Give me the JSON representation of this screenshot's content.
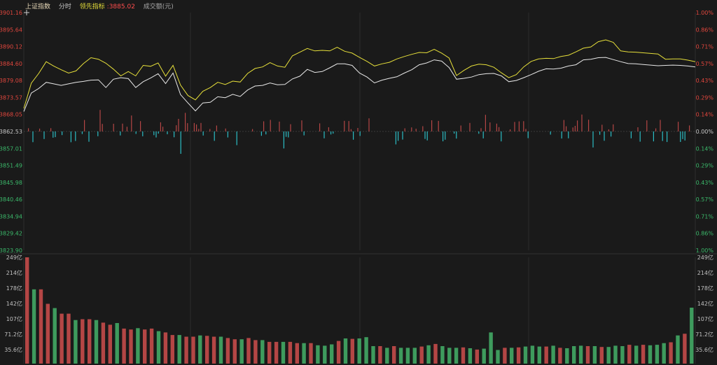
{
  "header": {
    "index_name": "上证指数",
    "mode": "分时",
    "lead_label": "领先指标",
    "lead_value": ":3885.02",
    "volume_label": "成交额(元)"
  },
  "colors": {
    "up": "#e0463d",
    "down": "#3bb86a",
    "teal": "#2bbcc4",
    "price_line": "#e8e8e8",
    "lead_line": "#e6df3a",
    "bar_red": "#b44645",
    "bar_green": "#3e9b5d"
  },
  "chart_data": [
    {
      "type": "line",
      "title": "",
      "y_left_ticks": [
        "3901.16",
        "3895.64",
        "3890.12",
        "3884.60",
        "3879.08",
        "3873.57",
        "3868.05",
        "3862.53",
        "3857.01",
        "3851.49",
        "3845.98",
        "3840.46",
        "3834.94",
        "3829.42",
        "3823.90"
      ],
      "y_right_ticks": [
        "1.00%",
        "0.86%",
        "0.71%",
        "0.57%",
        "0.43%",
        "0.29%",
        "0.14%",
        "0.00%",
        "0.14%",
        "0.29%",
        "0.43%",
        "0.57%",
        "0.71%",
        "0.86%",
        "1.00%"
      ],
      "ylim": [
        3823.9,
        3901.16
      ],
      "base_value": 3862.53,
      "series": [
        {
          "key": "price",
          "values": [
            3869.0,
            3875.0,
            3876.5,
            3878.5,
            3878.0,
            3877.5,
            3878.0,
            3878.5,
            3878.8,
            3879.2,
            3879.3,
            3876.8,
            3879.5,
            3880.0,
            3879.7,
            3876.8,
            3878.7,
            3879.9,
            3881.3,
            3878.1,
            3881.5,
            3874.5,
            3871.8,
            3869.2,
            3871.8,
            3872.0,
            3873.8,
            3873.5,
            3874.6,
            3873.9,
            3876.0,
            3877.3,
            3877.5,
            3878.3,
            3877.7,
            3877.8,
            3879.6,
            3880.5,
            3882.7,
            3881.7,
            3882.0,
            3883.2,
            3884.5,
            3884.5,
            3884.0,
            3881.5,
            3880.2,
            3878.3,
            3879.2,
            3879.8,
            3880.3,
            3881.5,
            3882.6,
            3884.2,
            3884.8,
            3885.8,
            3885.4,
            3883.3,
            3879.5,
            3879.8,
            3880.2,
            3881.0,
            3881.3,
            3881.4,
            3880.6,
            3878.7,
            3879.1,
            3880.0,
            3881.0,
            3882.1,
            3882.9,
            3882.8,
            3883.1,
            3883.8,
            3884.2,
            3885.8,
            3886.0,
            3886.5,
            3886.6,
            3885.9,
            3885.2,
            3884.6,
            3884.5,
            3884.3,
            3884.1,
            3883.9,
            3884.0,
            3884.1,
            3884.0,
            3883.8,
            3883.5
          ]
        }
      ]
    },
    {
      "type": "bar",
      "title": "",
      "y_left_ticks": [
        "249亿",
        "214亿",
        "178亿",
        "142亿",
        "107亿",
        "71.2亿",
        "35.6亿"
      ],
      "y_right_ticks": [
        "249亿",
        "214亿",
        "178亿",
        "142亿",
        "107亿",
        "71.2亿",
        "35.6亿"
      ],
      "ylim": [
        0,
        249
      ],
      "unit": "亿",
      "series": [
        {
          "key": "amount",
          "values": [
            249,
            174,
            174,
            140,
            130,
            117,
            117,
            102,
            104,
            104,
            102,
            96,
            91,
            95,
            82,
            80,
            83,
            80,
            82,
            76,
            73,
            67,
            67,
            63,
            63,
            66,
            65,
            63,
            63,
            60,
            57,
            57,
            60,
            55,
            55,
            51,
            51,
            51,
            51,
            48,
            48,
            48,
            43,
            42,
            45,
            53,
            59,
            58,
            59,
            62,
            41,
            41,
            37,
            41,
            37,
            37,
            37,
            40,
            43,
            46,
            41,
            37,
            37,
            38,
            36,
            33,
            35,
            73,
            32,
            37,
            37,
            38,
            40,
            42,
            40,
            40,
            42,
            37,
            36,
            41,
            42,
            41,
            41,
            39,
            39,
            42,
            41,
            44,
            42,
            44,
            43,
            44,
            48,
            50,
            66,
            70,
            131
          ]
        }
      ]
    }
  ],
  "lead_series": [
    3870.0,
    3878.2,
    3881.4,
    3885.2,
    3883.8,
    3882.6,
    3881.5,
    3882.2,
    3884.6,
    3886.5,
    3886.0,
    3884.7,
    3882.8,
    3880.6,
    3882.0,
    3880.6,
    3884.0,
    3883.7,
    3884.8,
    3880.5,
    3884.0,
    3877.6,
    3874.2,
    3872.8,
    3875.6,
    3876.8,
    3878.5,
    3877.8,
    3878.9,
    3878.6,
    3881.4,
    3883.0,
    3883.5,
    3884.9,
    3883.8,
    3883.4,
    3887.1,
    3888.3,
    3889.5,
    3888.7,
    3888.9,
    3888.7,
    3889.9,
    3888.6,
    3888.0,
    3886.6,
    3885.3,
    3883.8,
    3884.5,
    3885.0,
    3886.1,
    3886.9,
    3887.6,
    3888.2,
    3888.1,
    3889.2,
    3888.0,
    3886.4,
    3880.7,
    3882.4,
    3883.8,
    3884.4,
    3884.2,
    3883.4,
    3881.6,
    3880.0,
    3881.0,
    3883.5,
    3885.3,
    3886.1,
    3886.3,
    3886.2,
    3886.9,
    3887.3,
    3888.4,
    3889.6,
    3890.0,
    3891.7,
    3892.3,
    3891.5,
    3888.7,
    3888.4,
    3888.3,
    3888.1,
    3887.9,
    3887.7,
    3886.0,
    3886.1,
    3886.1,
    3885.7,
    3885.2
  ]
}
